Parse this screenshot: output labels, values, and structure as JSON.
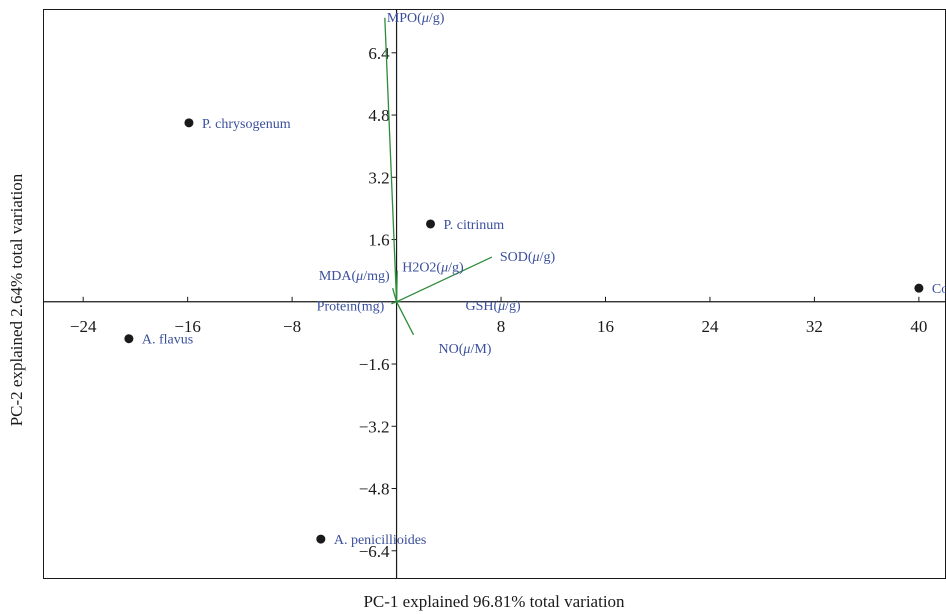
{
  "chart_data": {
    "type": "scatter",
    "title": "",
    "xlabel": "PC-1 explained 96.81% total variation",
    "ylabel": "PC-2 explained 2.64% total variation",
    "xlim": [
      -27,
      42
    ],
    "ylim": [
      -7.1,
      7.5
    ],
    "x_ticks": [
      {
        "value": -24,
        "label": "−24"
      },
      {
        "value": -16,
        "label": "−16"
      },
      {
        "value": -8,
        "label": "−8"
      },
      {
        "value": 8,
        "label": "8"
      },
      {
        "value": 16,
        "label": "16"
      },
      {
        "value": 24,
        "label": "24"
      },
      {
        "value": 32,
        "label": "32"
      },
      {
        "value": 40,
        "label": "40"
      }
    ],
    "y_ticks": [
      {
        "value": 6.4,
        "label": "6.4"
      },
      {
        "value": 4.8,
        "label": "4.8"
      },
      {
        "value": 3.2,
        "label": "3.2"
      },
      {
        "value": 1.6,
        "label": "1.6"
      },
      {
        "value": -1.6,
        "label": "−1.6"
      },
      {
        "value": -3.2,
        "label": "−3.2"
      },
      {
        "value": -4.8,
        "label": "−4.8"
      },
      {
        "value": -6.4,
        "label": "−6.4"
      }
    ],
    "points": [
      {
        "label": "P. chrysogenum",
        "x": -15.9,
        "y": 4.6
      },
      {
        "label": "P. citrinum",
        "x": 2.6,
        "y": 2.0
      },
      {
        "label": "Control",
        "x": 40.0,
        "y": 0.35
      },
      {
        "label": "A. flavus",
        "x": -20.5,
        "y": -0.95
      },
      {
        "label": "A. penicillioides",
        "x": -5.8,
        "y": -6.1
      }
    ],
    "loadings": [
      {
        "pre": "MPO(",
        "unit": "μ",
        "post": "/g)",
        "x": -0.9,
        "y": 7.3
      },
      {
        "pre": "SOD(",
        "unit": "μ",
        "post": "/g)",
        "x": 7.3,
        "y": 1.15
      },
      {
        "pre": "H2O2(",
        "unit": "μ",
        "post": "/g)",
        "x": 0.05,
        "y": 0.8
      },
      {
        "pre": "MDA(",
        "unit": "μ",
        "post": "/mg)",
        "x": -0.3,
        "y": 0.35
      },
      {
        "pre": "Protein(mg)",
        "unit": "",
        "post": "",
        "x": -0.4,
        "y": -0.05
      },
      {
        "pre": "GSH(",
        "unit": "μ",
        "post": "/g)",
        "x": 0.3,
        "y": 0.0
      },
      {
        "pre": "NO(",
        "unit": "μ",
        "post": "/M)",
        "x": 1.3,
        "y": -0.85
      }
    ],
    "legend": "none",
    "grid": false,
    "colors": {
      "point": "#1a1a1a",
      "point_label": "#3a4f9c",
      "loading_line": "#2e8b3a",
      "loading_label": "#3a4f9c",
      "axis": "#1a1a1a"
    }
  }
}
